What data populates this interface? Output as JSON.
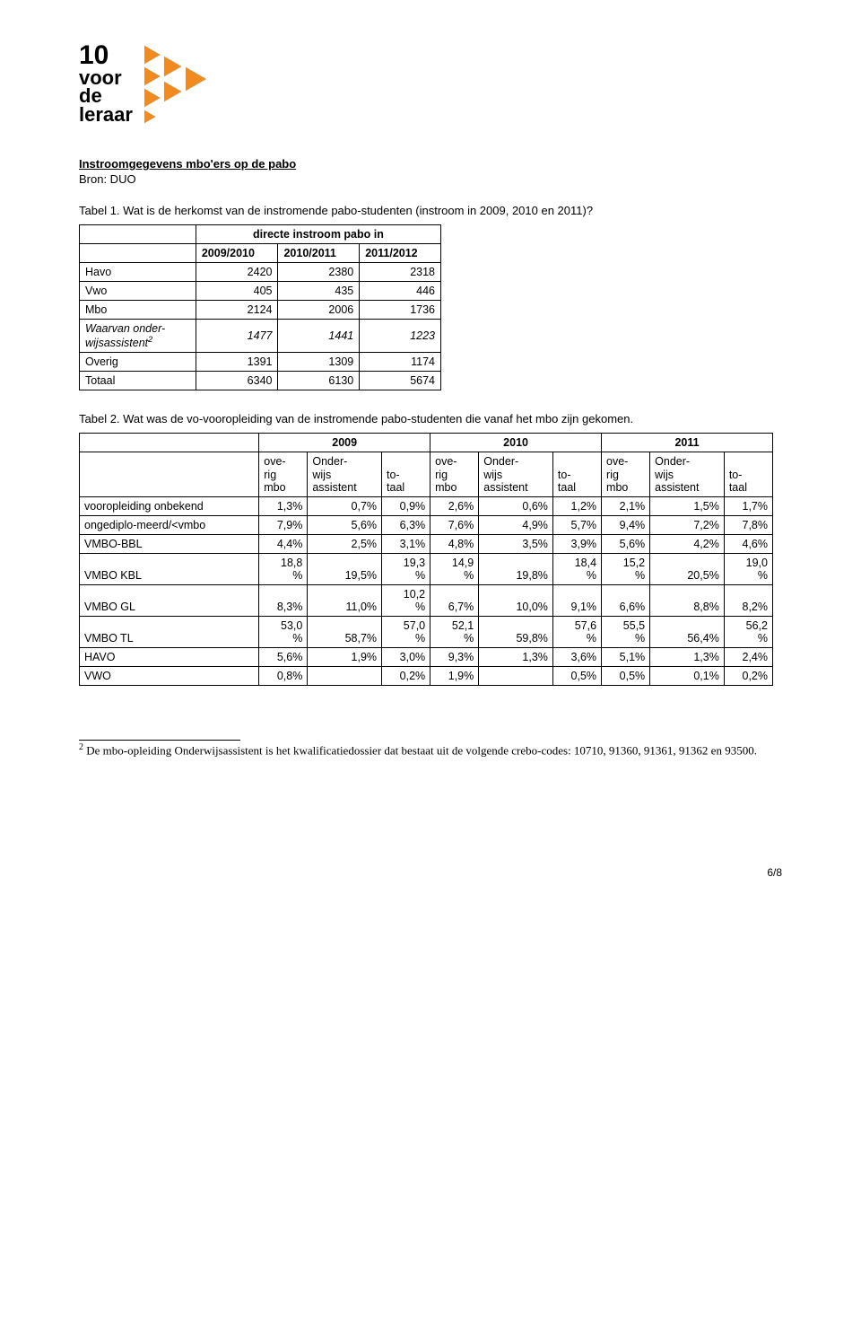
{
  "logo": {
    "line1": "10",
    "line2": "voor",
    "line3": "de",
    "line4": "leraar",
    "triangle_color": "#f18a1f",
    "triangle_stroke": "#ffffff"
  },
  "heading": {
    "title": "Instroomgegevens mbo'ers op de pabo",
    "source": "Bron: DUO"
  },
  "caption1": "Tabel 1. Wat is de herkomst van de instromende pabo-studenten (instroom in 2009, 2010 en 2011)?",
  "table1": {
    "spanning_header": "directe instroom pabo in",
    "year_cols": [
      "2009/2010",
      "2010/2011",
      "2011/2012"
    ],
    "rows": [
      {
        "label": "Havo",
        "vals": [
          "2420",
          "2380",
          "2318"
        ],
        "italic": false
      },
      {
        "label": "Vwo",
        "vals": [
          "405",
          "435",
          "446"
        ],
        "italic": false
      },
      {
        "label": "Mbo",
        "vals": [
          "2124",
          "2006",
          "1736"
        ],
        "italic": false
      },
      {
        "label_html": "Waarvan onder-wijsassistent",
        "sup": "2",
        "vals": [
          "1477",
          "1441",
          "1223"
        ],
        "italic": true
      },
      {
        "label": "Overig",
        "vals": [
          "1391",
          "1309",
          "1174"
        ],
        "italic": false
      },
      {
        "label": "Totaal",
        "vals": [
          "6340",
          "6130",
          "5674"
        ],
        "italic": false
      }
    ]
  },
  "caption2": "Tabel 2. Wat was de vo-vooropleiding van de instromende pabo-studenten die vanaf het mbo zijn gekomen.",
  "table2": {
    "years": [
      "2009",
      "2010",
      "2011"
    ],
    "sub_cols": [
      "ove-\nrig\nmbo",
      "Onder-\nwijs\nassistent",
      "to-\ntaal"
    ],
    "rows": [
      {
        "label": "vooropleiding onbekend",
        "vals": [
          "1,3%",
          "0,7%",
          "0,9%",
          "2,6%",
          "0,6%",
          "1,2%",
          "2,1%",
          "1,5%",
          "1,7%"
        ]
      },
      {
        "label": "ongediplo-meerd/<vmbo",
        "vals": [
          "7,9%",
          "5,6%",
          "6,3%",
          "7,6%",
          "4,9%",
          "5,7%",
          "9,4%",
          "7,2%",
          "7,8%"
        ]
      },
      {
        "label": "VMBO-BBL",
        "vals": [
          "4,4%",
          "2,5%",
          "3,1%",
          "4,8%",
          "3,5%",
          "3,9%",
          "5,6%",
          "4,2%",
          "4,6%"
        ]
      },
      {
        "label": "VMBO KBL",
        "vals": [
          "18,8\n%",
          "19,5%",
          "19,3\n%",
          "14,9\n%",
          "19,8%",
          "18,4\n%",
          "15,2\n%",
          "20,5%",
          "19,0\n%"
        ]
      },
      {
        "label": "VMBO GL",
        "vals": [
          "8,3%",
          "11,0%",
          "10,2\n%",
          "6,7%",
          "10,0%",
          "9,1%",
          "6,6%",
          "8,8%",
          "8,2%"
        ]
      },
      {
        "label": "VMBO TL",
        "vals": [
          "53,0\n%",
          "58,7%",
          "57,0\n%",
          "52,1\n%",
          "59,8%",
          "57,6\n%",
          "55,5\n%",
          "56,4%",
          "56,2\n%"
        ]
      },
      {
        "label": "HAVO",
        "vals": [
          "5,6%",
          "1,9%",
          "3,0%",
          "9,3%",
          "1,3%",
          "3,6%",
          "5,1%",
          "1,3%",
          "2,4%"
        ]
      },
      {
        "label": "VWO",
        "vals": [
          "0,8%",
          "",
          "0,2%",
          "1,9%",
          "",
          "0,5%",
          "0,5%",
          "0,1%",
          "0,2%"
        ]
      }
    ]
  },
  "footnote": {
    "num": "2",
    "text": "De mbo-opleiding Onderwijsassistent is het kwalificatiedossier dat bestaat uit de volgende crebo-codes: 10710, 91360, 91361, 91362 en 93500."
  },
  "page_number": "6/8"
}
